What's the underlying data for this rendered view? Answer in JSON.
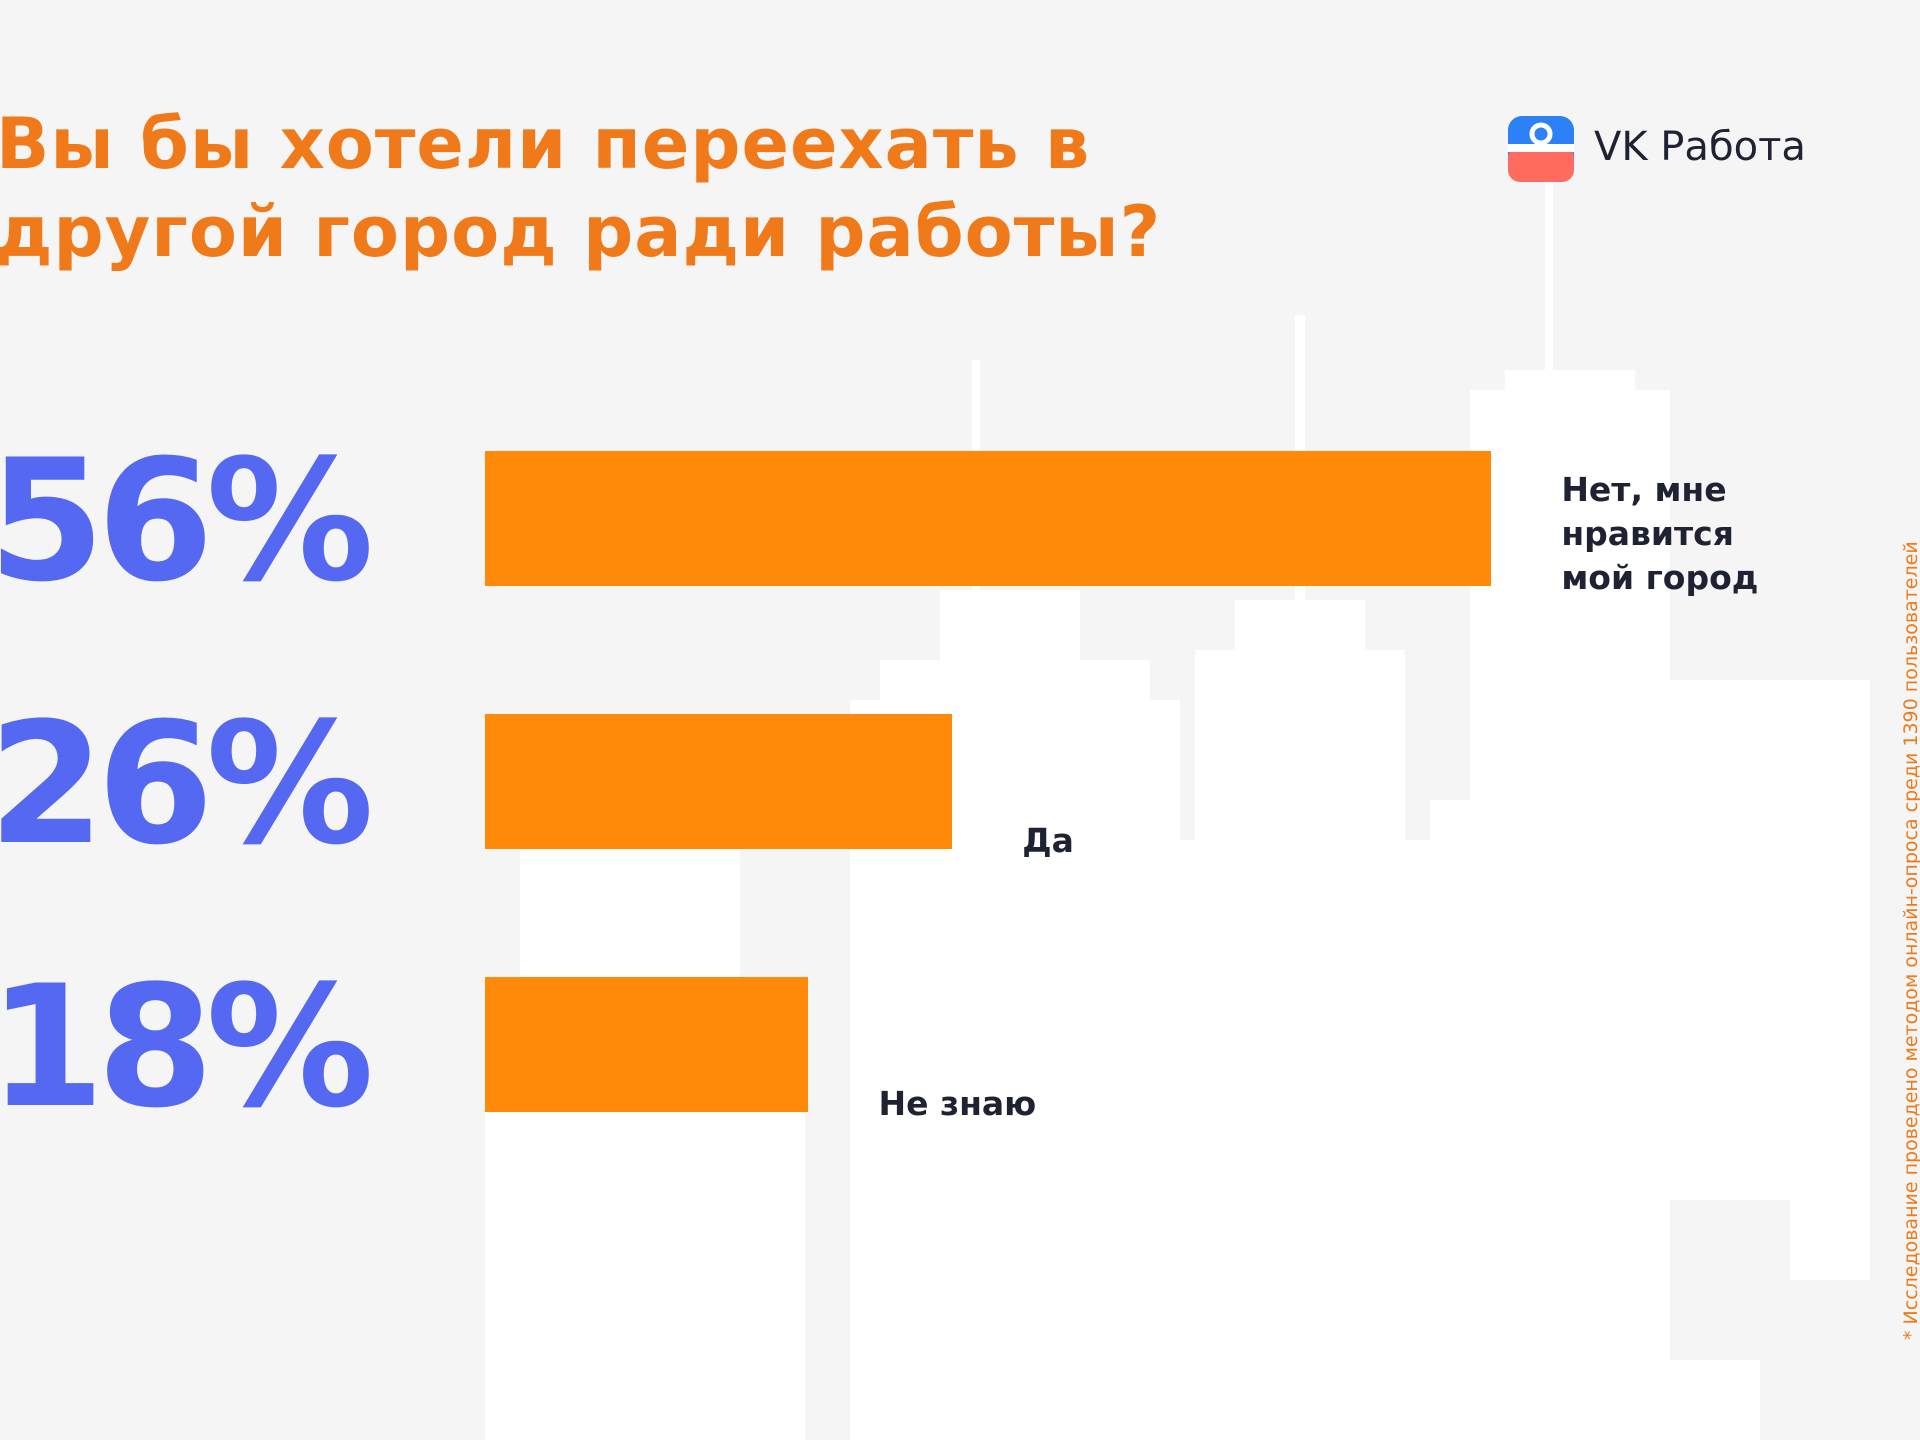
{
  "chart_data": {
    "type": "bar",
    "orientation": "horizontal",
    "title": "Вы бы хотели переехать в другой город ради работы?",
    "categories": [
      "Нет, мне нравится мой город",
      "Да",
      "Не знаю"
    ],
    "values": [
      56,
      26,
      18
    ],
    "value_labels": [
      "56%",
      "26%",
      "18%"
    ],
    "color": "#ff8a0a",
    "value_label_color": "#5468f2"
  },
  "brand": "VK Работа",
  "footnote": "* Исследование проведено методом онлайн-опроса среди 1390 пользователей"
}
